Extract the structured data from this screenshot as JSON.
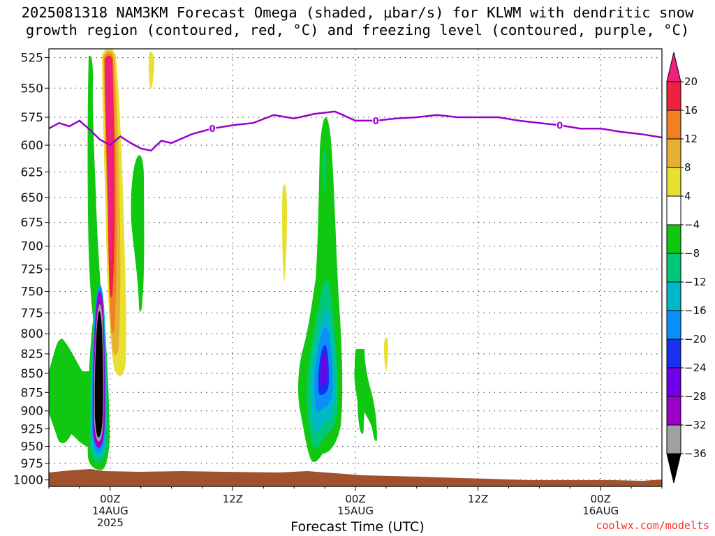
{
  "title": {
    "line1": "2025081318 NAM3KM Forecast Omega (shaded, μbar/s) for KLWM with dendritic snow",
    "line2": "growth region (contoured, red, °C) and freezing level (contoured, purple, °C)"
  },
  "credit": "coolwx.com/modelts",
  "chart_data": {
    "type": "heatmap",
    "title": "2025081318 NAM3KM Forecast Omega (shaded, μbar/s) for KLWM with dendritic snow growth region (contoured, red, °C) and freezing level (contoured, purple, °C)",
    "xlabel": "Forecast Time (UTC)",
    "ylabel": "",
    "forecast_hour_range": [
      -6,
      54
    ],
    "pressure_ylim_hPa": [
      1010,
      518
    ],
    "y_axis": "log-pressure",
    "grid": true,
    "y_ticks": [
      525,
      550,
      575,
      600,
      625,
      650,
      675,
      700,
      725,
      750,
      775,
      800,
      825,
      850,
      875,
      900,
      925,
      950,
      975,
      1000
    ],
    "x_ticks": [
      {
        "hour": 0,
        "label": "00Z",
        "sub": "14AUG",
        "sub2": "2025"
      },
      {
        "hour": 12,
        "label": "12Z",
        "sub": "",
        "sub2": ""
      },
      {
        "hour": 24,
        "label": "00Z",
        "sub": "15AUG",
        "sub2": ""
      },
      {
        "hour": 36,
        "label": "12Z",
        "sub": "",
        "sub2": ""
      },
      {
        "hour": 48,
        "label": "00Z",
        "sub": "16AUG",
        "sub2": ""
      }
    ],
    "colorbar": {
      "levels": [
        -36,
        -32,
        -28,
        -24,
        -20,
        -16,
        -12,
        -8,
        -4,
        4,
        8,
        12,
        16,
        20
      ],
      "labels": [
        "20",
        "16",
        "12",
        "8",
        "4",
        "−4",
        "−8",
        "−12",
        "−16",
        "−20",
        "−24",
        "−28",
        "−32",
        "−36"
      ],
      "colors": [
        "#000000",
        "#a0a0a0",
        "#9a00c8",
        "#7000e8",
        "#1830f0",
        "#0a90f8",
        "#00b8c8",
        "#00c878",
        "#10c810",
        "#ffffff",
        "#e8e030",
        "#e8b030",
        "#f08020",
        "#f02040",
        "#f02080"
      ]
    },
    "freezing_level": {
      "label": "0",
      "color": "#9900cc",
      "hour": [
        -6,
        -5,
        -4,
        -3,
        -2,
        -1,
        0,
        1,
        2,
        3,
        4,
        5,
        6,
        8,
        10,
        12,
        14,
        16,
        18,
        20,
        22,
        24,
        26,
        28,
        30,
        32,
        34,
        36,
        38,
        40,
        42,
        44,
        46,
        48,
        50,
        52,
        54
      ],
      "pressure_hPa": [
        585,
        580,
        583,
        578,
        586,
        595,
        600,
        592,
        598,
        603,
        605,
        596,
        598,
        590,
        585,
        582,
        580,
        573,
        576,
        572,
        570,
        578,
        578,
        576,
        575,
        573,
        575,
        575,
        575,
        578,
        580,
        582,
        585,
        585,
        588,
        590,
        593
      ]
    },
    "omega_features": [
      {
        "name": "pre-00Z 14AUG updraft core",
        "min_ubar_s": -36,
        "hour": -0.9,
        "pressure_range_hPa": [
          560,
          990
        ]
      },
      {
        "name": "pre-00Z 14AUG sinking core",
        "max_ubar_s": 20,
        "hour": -0.2,
        "pressure_range_hPa": [
          520,
          820
        ]
      },
      {
        "name": "15AUG updraft",
        "min_ubar_s": -24,
        "hour": 20.8,
        "pressure_range_hPa": [
          580,
          985
        ]
      }
    ]
  }
}
